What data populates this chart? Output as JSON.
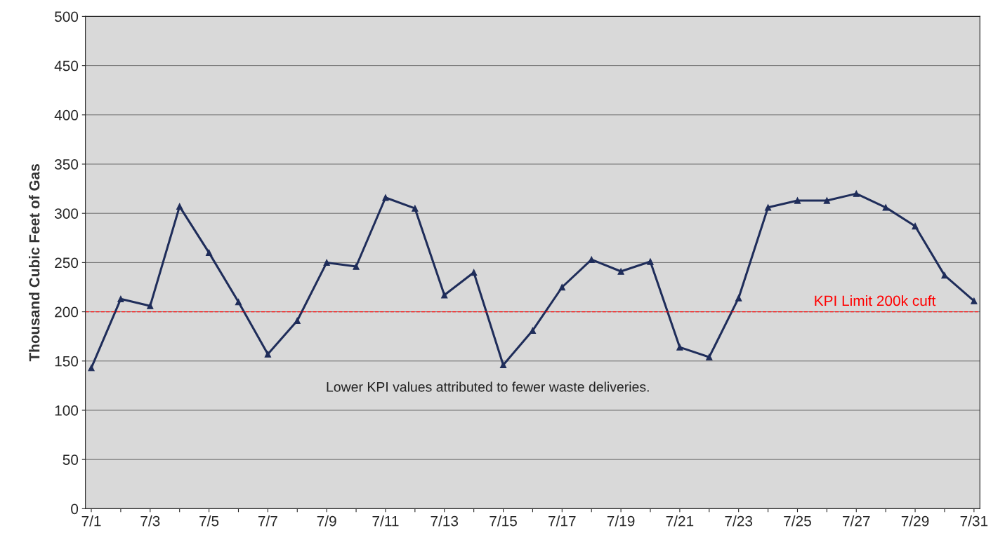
{
  "chart_data": {
    "type": "line",
    "ylabel": "Thousand Cubic Feet of Gas",
    "categories": [
      "7/1",
      null,
      "7/3",
      null,
      "7/5",
      null,
      "7/7",
      null,
      "7/9",
      null,
      "7/11",
      null,
      "7/13",
      null,
      "7/15",
      null,
      "7/17",
      null,
      "7/19",
      null,
      "7/21",
      null,
      "7/23",
      null,
      "7/25",
      null,
      "7/27",
      null,
      "7/29",
      null,
      "7/31"
    ],
    "series": [
      {
        "color": "#1f2d5a",
        "values": [
          143,
          213,
          206,
          307,
          260,
          210,
          157,
          191,
          250,
          246,
          316,
          305,
          217,
          240,
          146,
          181,
          225,
          253,
          241,
          251,
          164,
          154,
          214,
          306,
          313,
          313,
          320,
          306,
          287,
          237,
          211
        ]
      }
    ],
    "ylim": [
      0,
      500
    ],
    "yticks": [
      0,
      50,
      100,
      150,
      200,
      250,
      300,
      350,
      400,
      450,
      500
    ],
    "grid": "y",
    "marker": "triangle",
    "line_style": "solid",
    "ref_lines": [
      {
        "axis": "y",
        "value": 200,
        "label": "KPI Limit 200k cuft",
        "color": "#ff0000",
        "line_style": "dashed"
      }
    ],
    "annotations": [
      "Lower KPI values attributed to fewer waste deliveries."
    ]
  }
}
